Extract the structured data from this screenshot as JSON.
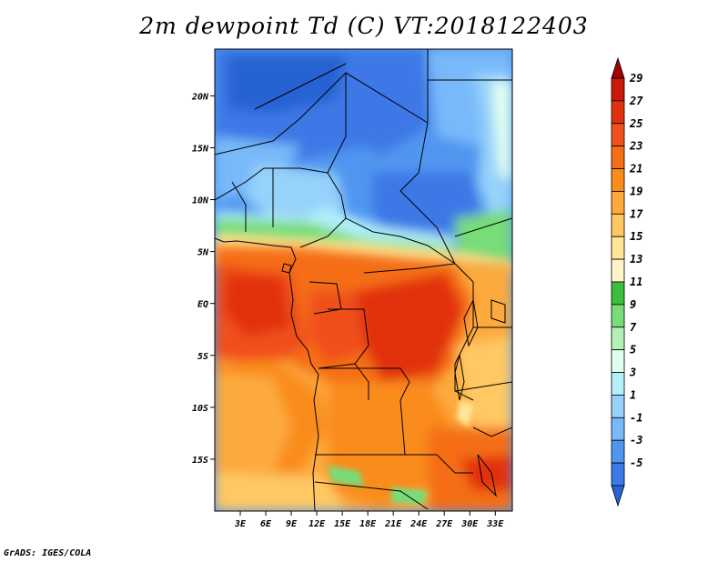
{
  "title": "2m dewpoint Td (C) VT:2018122403",
  "credit": "GrADS: IGES/COLA",
  "lat_ticks": [
    "20N",
    "15N",
    "10N",
    "5N",
    "EQ",
    "5S",
    "10S",
    "15S"
  ],
  "lat_values": [
    20,
    15,
    10,
    5,
    0,
    -5,
    -10,
    -15
  ],
  "lon_ticks": [
    "3E",
    "6E",
    "9E",
    "12E",
    "15E",
    "18E",
    "21E",
    "24E",
    "27E",
    "30E",
    "33E"
  ],
  "lon_values": [
    3,
    6,
    9,
    12,
    15,
    18,
    21,
    24,
    27,
    30,
    33
  ],
  "colorbar": {
    "labels": [
      "29",
      "27",
      "25",
      "23",
      "21",
      "19",
      "17",
      "15",
      "13",
      "11",
      "9",
      "7",
      "5",
      "3",
      "1",
      "-1",
      "-3",
      "-5"
    ],
    "colors": [
      "#a50000",
      "#c8190a",
      "#e1320f",
      "#f0501e",
      "#f56e14",
      "#fa8c1e",
      "#fcaa3c",
      "#ffc864",
      "#ffe696",
      "#fff5c8",
      "#3cbe3c",
      "#78dc78",
      "#b4f0b4",
      "#e1fff0",
      "#b4f0fa",
      "#96d2fa",
      "#78b9fa",
      "#5096f0",
      "#3c78e6",
      "#2864d2"
    ]
  },
  "map": {
    "extent_lon": [
      0,
      35
    ],
    "extent_lat": [
      -20,
      24.5
    ]
  }
}
